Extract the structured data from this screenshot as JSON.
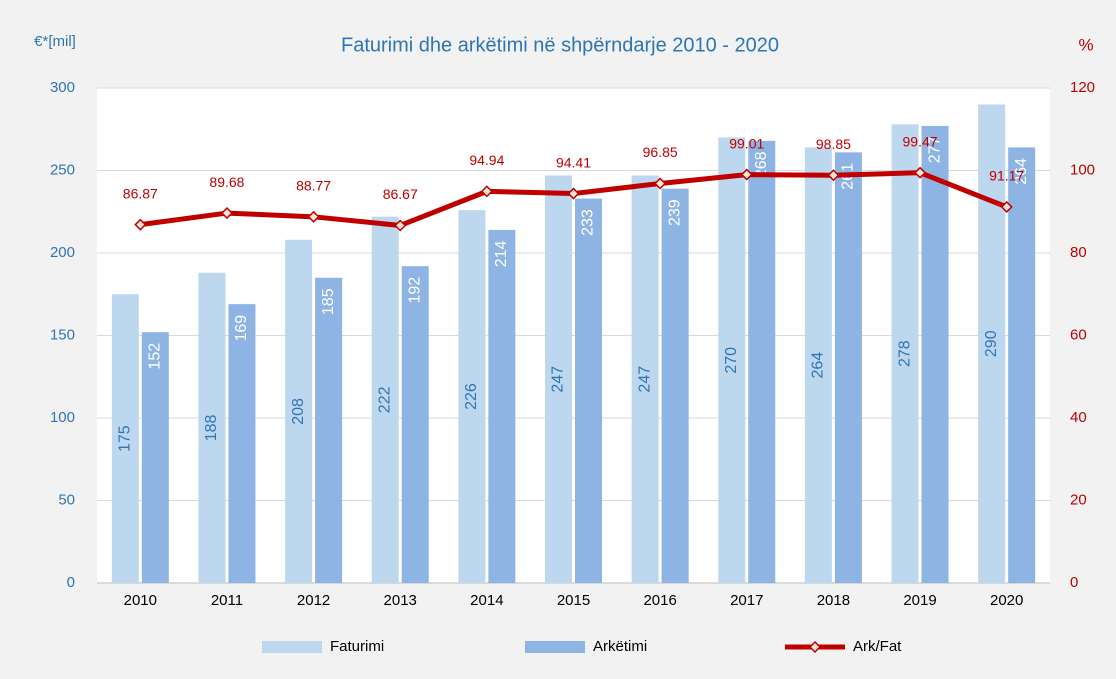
{
  "chart_data": {
    "type": "bar",
    "title": "Faturimi dhe arkëtimi në shpërndarje 2010 - 2020",
    "y_label": "€*[mil]",
    "y2_label": "%",
    "categories": [
      "2010",
      "2011",
      "2012",
      "2013",
      "2014",
      "2015",
      "2016",
      "2017",
      "2018",
      "2019",
      "2020"
    ],
    "series": [
      {
        "name": "Faturimi",
        "type": "bar",
        "color": "#bdd7ee",
        "label_color": "#2e75b6",
        "values": [
          175,
          188,
          208,
          222,
          226,
          247,
          247,
          270,
          264,
          278,
          290
        ]
      },
      {
        "name": "Arkëtimi",
        "type": "bar",
        "color": "#8eb4e3",
        "label_color": "#ffffff",
        "values": [
          152,
          169,
          185,
          192,
          214,
          233,
          239,
          268,
          261,
          277,
          264
        ]
      },
      {
        "name": "Ark/Fat",
        "type": "line",
        "axis": "y2",
        "color": "#c00000",
        "values": [
          86.87,
          89.68,
          88.77,
          86.67,
          94.94,
          94.41,
          96.85,
          99.01,
          98.85,
          99.47,
          91.17
        ]
      }
    ],
    "ylim": [
      0,
      300
    ],
    "yticks": [
      0,
      50,
      100,
      150,
      200,
      250,
      300
    ],
    "y2lim": [
      0,
      120
    ],
    "y2ticks": [
      0,
      20,
      40,
      60,
      80,
      100,
      120
    ],
    "grid": true,
    "legend": "bottom"
  }
}
